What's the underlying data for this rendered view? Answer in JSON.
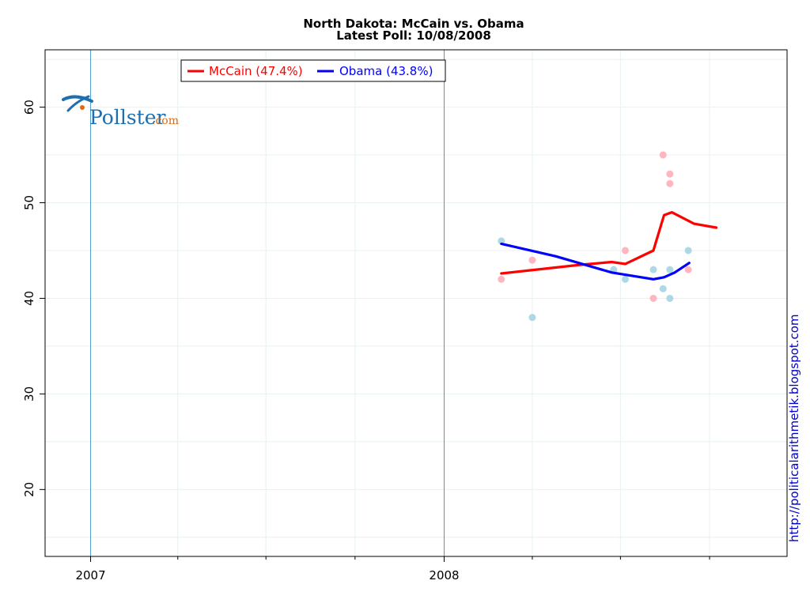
{
  "chart_data": {
    "type": "line",
    "title": "North Dakota: McCain vs. Obama",
    "subtitle": "Latest Poll: 10/08/2008",
    "xlabel": "",
    "ylabel": "",
    "x_range": [
      "2006-11-15",
      "2008-12-20"
    ],
    "ylim": [
      13,
      66
    ],
    "y_ticks": [
      20,
      30,
      40,
      50,
      60
    ],
    "x_ticks": [
      {
        "date": "2007-01-01",
        "label": "2007"
      },
      {
        "date": "2008-01-01",
        "label": "2008"
      }
    ],
    "grid": true,
    "legend_position": "top-left",
    "series": [
      {
        "name": "McCain (47.4%)",
        "color": "#ff0000",
        "trend": [
          {
            "x": "2008-02-29",
            "y": 42.6
          },
          {
            "x": "2008-05-20",
            "y": 43.5
          },
          {
            "x": "2008-06-22",
            "y": 43.8
          },
          {
            "x": "2008-07-06",
            "y": 43.6
          },
          {
            "x": "2008-08-04",
            "y": 45.0
          },
          {
            "x": "2008-08-15",
            "y": 48.7
          },
          {
            "x": "2008-08-23",
            "y": 49.0
          },
          {
            "x": "2008-09-15",
            "y": 47.8
          },
          {
            "x": "2008-10-08",
            "y": 47.4
          }
        ],
        "polls": [
          {
            "x": "2008-02-29",
            "y": 42
          },
          {
            "x": "2008-04-01",
            "y": 44
          },
          {
            "x": "2008-07-06",
            "y": 45
          },
          {
            "x": "2008-08-04",
            "y": 40
          },
          {
            "x": "2008-08-14",
            "y": 55
          },
          {
            "x": "2008-08-21",
            "y": 53
          },
          {
            "x": "2008-08-21",
            "y": 52
          },
          {
            "x": "2008-09-09",
            "y": 43
          }
        ]
      },
      {
        "name": "Obama (43.8%)",
        "color": "#0000ff",
        "trend": [
          {
            "x": "2008-02-29",
            "y": 45.7
          },
          {
            "x": "2008-04-25",
            "y": 44.4
          },
          {
            "x": "2008-06-22",
            "y": 42.7
          },
          {
            "x": "2008-08-04",
            "y": 42.0
          },
          {
            "x": "2008-08-15",
            "y": 42.2
          },
          {
            "x": "2008-08-26",
            "y": 42.7
          },
          {
            "x": "2008-09-10",
            "y": 43.7
          }
        ],
        "polls": [
          {
            "x": "2008-02-29",
            "y": 46
          },
          {
            "x": "2008-04-01",
            "y": 38
          },
          {
            "x": "2008-06-24",
            "y": 43
          },
          {
            "x": "2008-07-06",
            "y": 42
          },
          {
            "x": "2008-08-04",
            "y": 43
          },
          {
            "x": "2008-08-14",
            "y": 41
          },
          {
            "x": "2008-08-21",
            "y": 40
          },
          {
            "x": "2008-08-21",
            "y": 43
          },
          {
            "x": "2008-09-09",
            "y": 45
          }
        ]
      }
    ],
    "poll_colors": {
      "McCain": "#ffb6c1",
      "Obama": "#add8e6"
    },
    "year_line_color": "#4a9ac4",
    "grid_color": "#e8f0f0"
  },
  "logo": {
    "main": "Pollster",
    "suffix": ".com"
  },
  "credit": "http://politicalarithmetik.blogspot.com"
}
